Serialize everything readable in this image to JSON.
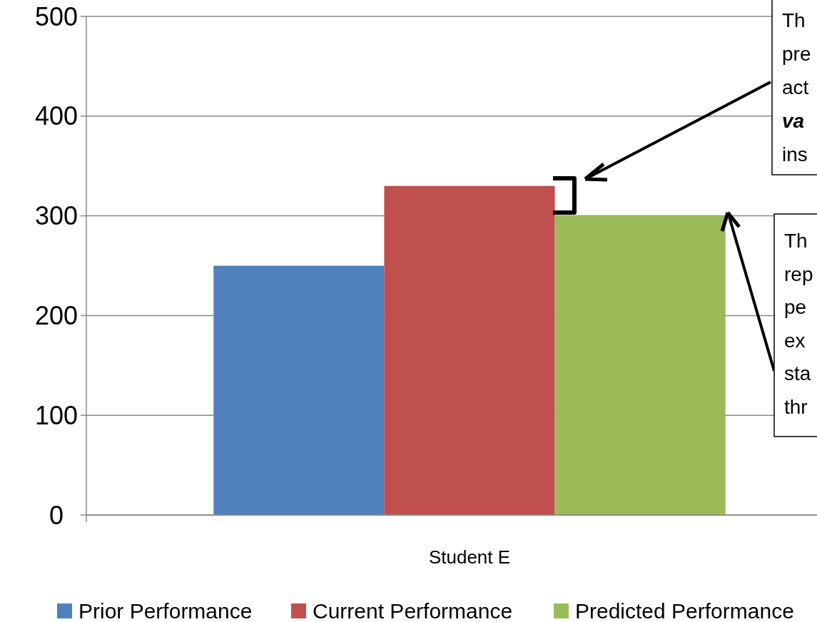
{
  "chart_data": {
    "type": "bar",
    "categories": [
      "Student E"
    ],
    "series": [
      {
        "name": "Prior Performance",
        "color": "#4f81bd",
        "values": [
          250
        ]
      },
      {
        "name": "Current Performance",
        "color": "#c0504d",
        "values": [
          330
        ]
      },
      {
        "name": "Predicted Performance",
        "color": "#9bbb59",
        "values": [
          300
        ]
      }
    ],
    "ylim": [
      0,
      500
    ],
    "yticks": [
      0,
      100,
      200,
      300,
      400,
      500
    ],
    "grid": "y",
    "legend": "bottom",
    "annotations": [
      "Th\npre\nact\nva\nins",
      "Th\nrep\npe\nex\nsta\nthr"
    ]
  }
}
